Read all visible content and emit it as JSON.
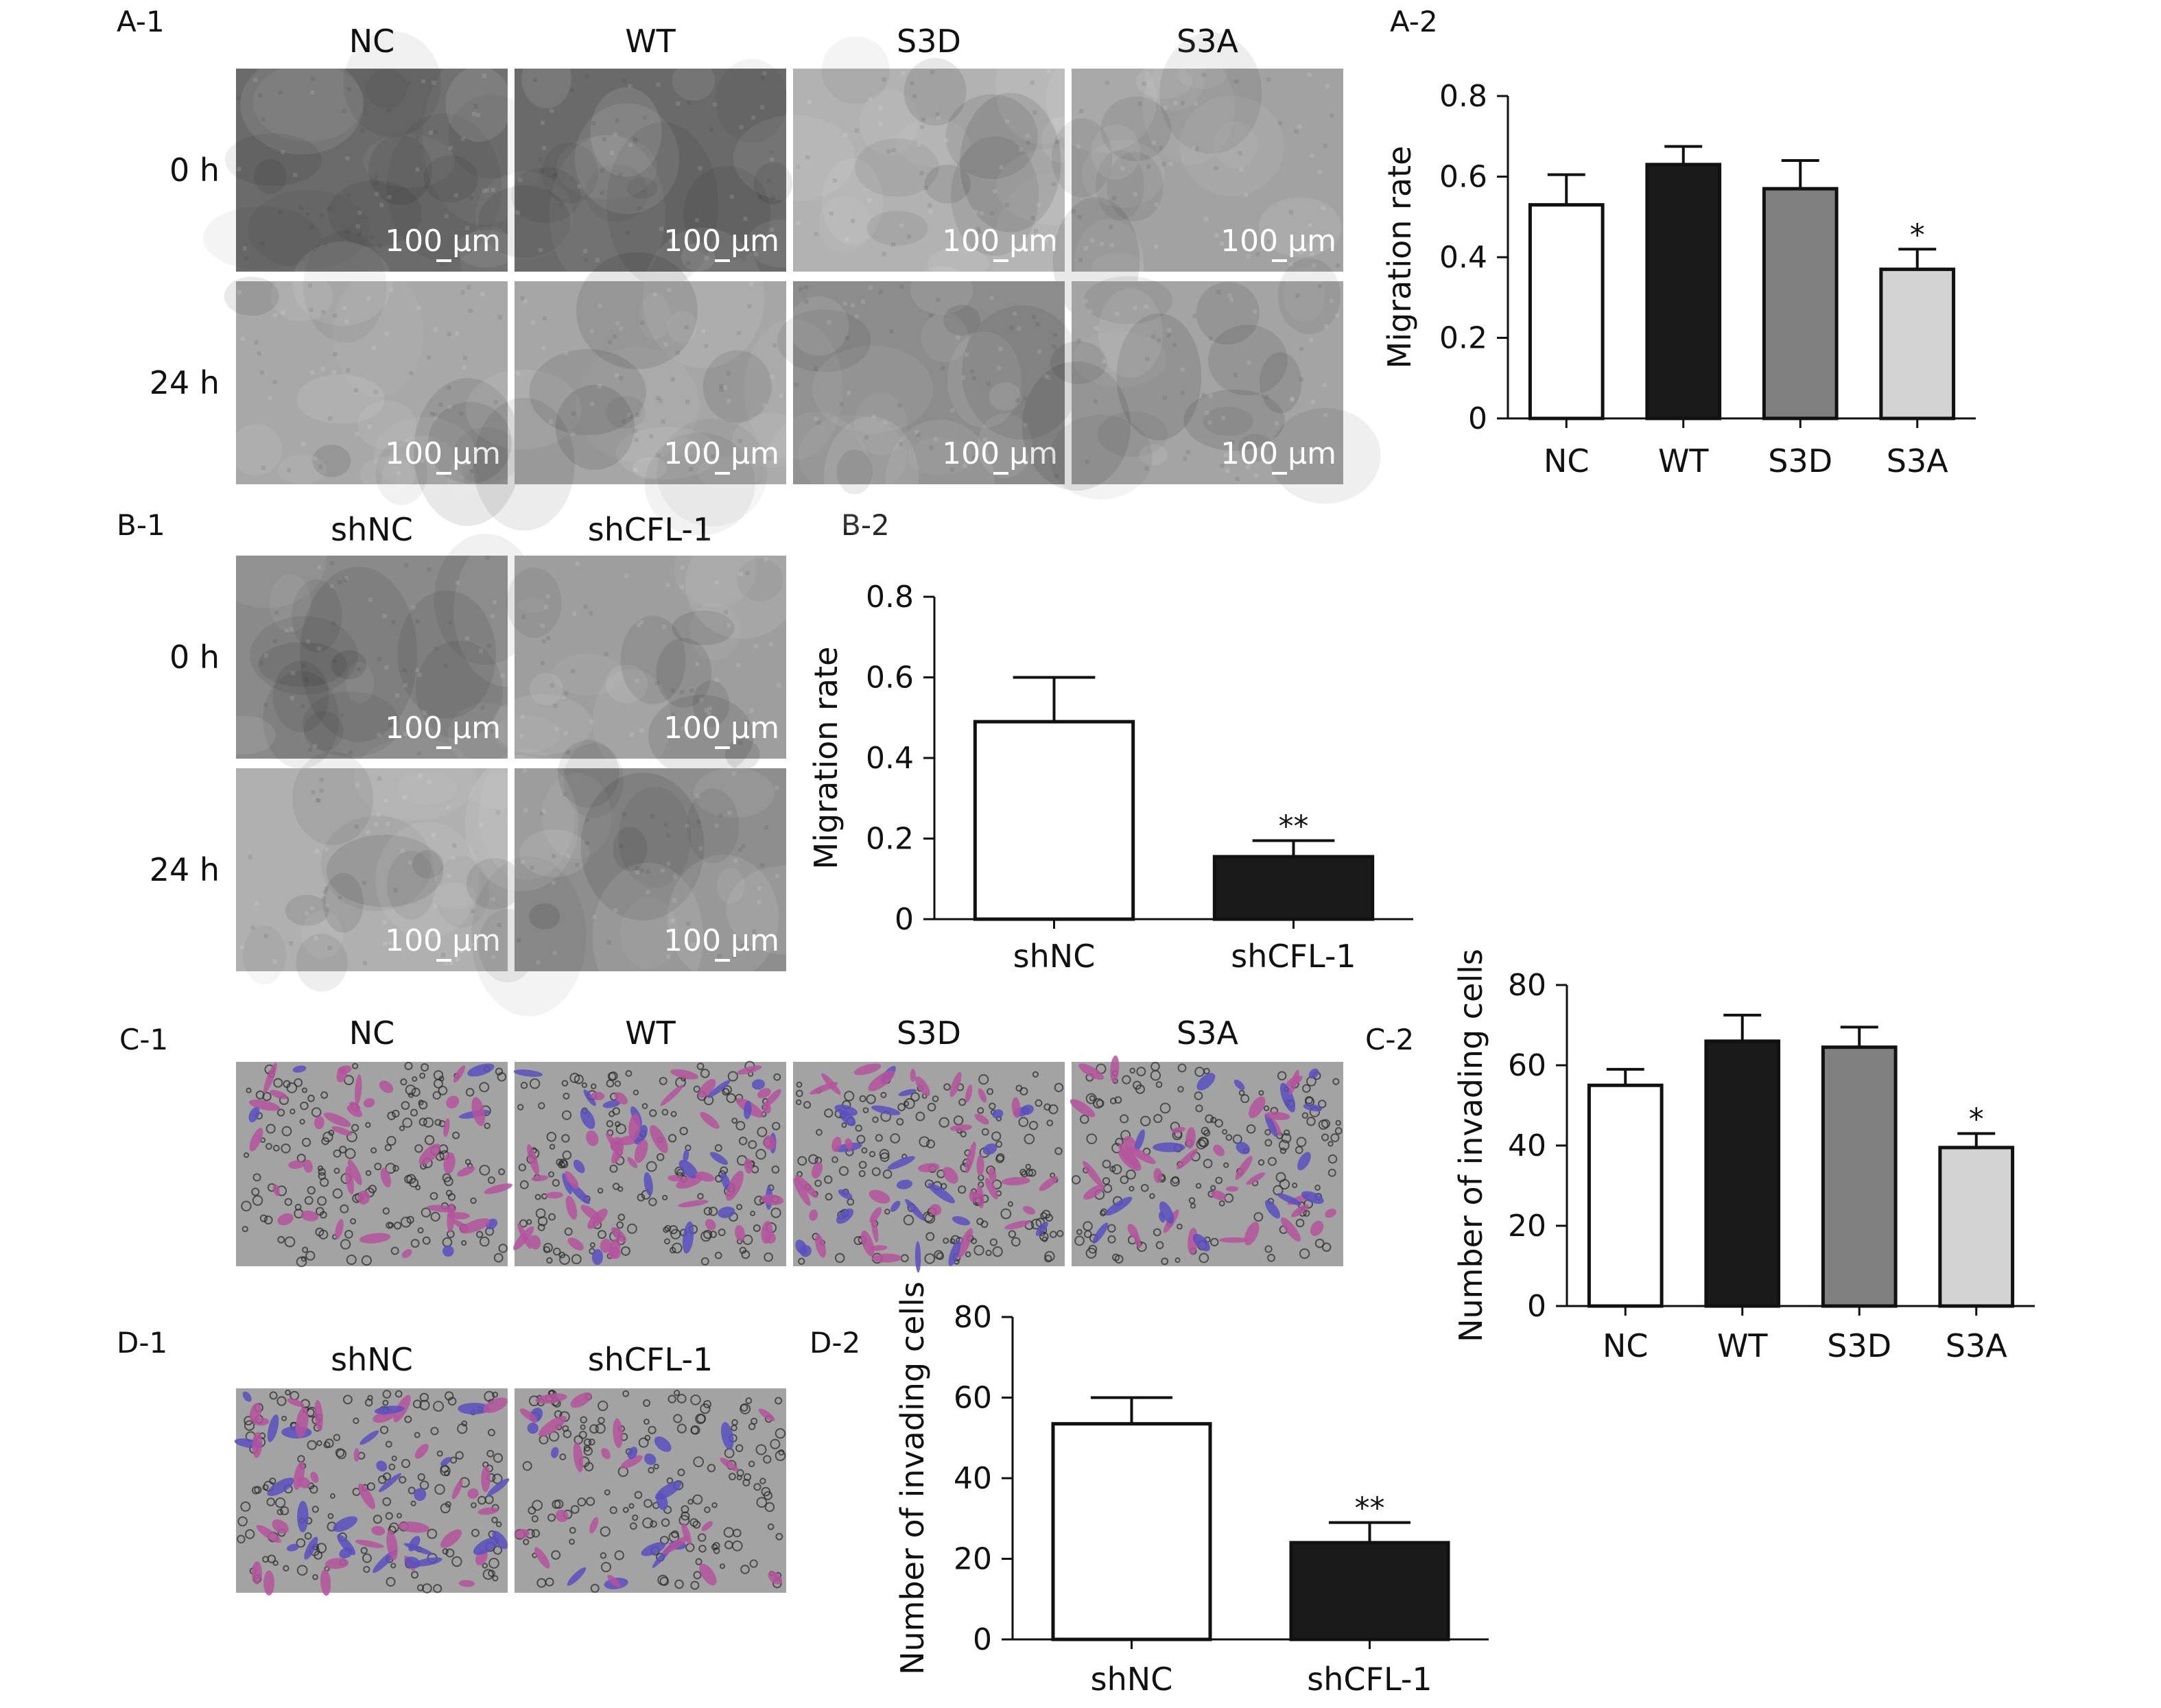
{
  "panels": {
    "A1": {
      "label": "A-1",
      "columns": [
        "NC",
        "WT",
        "S3D",
        "S3A"
      ],
      "rows": [
        "0 h",
        "24 h"
      ],
      "scale_bar": "100 μm",
      "image_tones": [
        [
          "#6b6b6b",
          "#6a6a6a",
          "#b2b2b2",
          "#a2a2a2"
        ],
        [
          "#a8a8a8",
          "#a6a6a6",
          "#8c8c8c",
          "#a4a4a4"
        ]
      ]
    },
    "B1": {
      "label": "B-1",
      "columns": [
        "shNC",
        "shCFL-1"
      ],
      "rows": [
        "0 h",
        "24 h"
      ],
      "scale_bar": "100 μm",
      "image_tones": [
        [
          "#8a8a8a",
          "#9e9e9e"
        ],
        [
          "#b0b0b0",
          "#8e8e8e"
        ]
      ]
    },
    "C1": {
      "label": "C-1",
      "columns": [
        "NC",
        "WT",
        "S3D",
        "S3A"
      ],
      "density": [
        0.35,
        0.7,
        0.6,
        0.45
      ]
    },
    "D1": {
      "label": "D-1",
      "columns": [
        "shNC",
        "shCFL-1"
      ],
      "density": [
        0.55,
        0.2
      ]
    },
    "A2": {
      "label": "A-2"
    },
    "B2": {
      "label": "B-2"
    },
    "C2": {
      "label": "C-2"
    },
    "D2": {
      "label": "D-2"
    }
  },
  "chart_data": [
    {
      "id": "A2",
      "type": "bar",
      "categories": [
        "NC",
        "WT",
        "S3D",
        "S3A"
      ],
      "values": [
        0.53,
        0.63,
        0.57,
        0.37
      ],
      "errors": [
        0.075,
        0.045,
        0.07,
        0.05
      ],
      "significance": [
        "",
        "",
        "",
        "*"
      ],
      "colors": [
        "#ffffff",
        "#1a1a1a",
        "#808080",
        "#d3d3d3"
      ],
      "ylabel": "Migration rate",
      "ylim": [
        0,
        0.8
      ],
      "yticks": [
        "0",
        "0.2",
        "0.4",
        "0.6",
        "0.8"
      ]
    },
    {
      "id": "B2",
      "type": "bar",
      "categories": [
        "shNC",
        "shCFL-1"
      ],
      "values": [
        0.49,
        0.155
      ],
      "errors": [
        0.11,
        0.04
      ],
      "significance": [
        "",
        "**"
      ],
      "colors": [
        "#ffffff",
        "#1a1a1a"
      ],
      "ylabel": "Migration rate",
      "ylim": [
        0,
        0.8
      ],
      "yticks": [
        "0",
        "0.2",
        "0.4",
        "0.6",
        "0.8"
      ]
    },
    {
      "id": "C2",
      "type": "bar",
      "categories": [
        "NC",
        "WT",
        "S3D",
        "S3A"
      ],
      "values": [
        55,
        66,
        64.5,
        39.5
      ],
      "errors": [
        4,
        6.5,
        5,
        3.5
      ],
      "significance": [
        "",
        "",
        "",
        "*"
      ],
      "colors": [
        "#ffffff",
        "#1a1a1a",
        "#808080",
        "#d3d3d3"
      ],
      "ylabel": "Number of invading cells",
      "ylim": [
        0,
        80
      ],
      "yticks": [
        "0",
        "20",
        "40",
        "60",
        "80"
      ]
    },
    {
      "id": "D2",
      "type": "bar",
      "categories": [
        "shNC",
        "shCFL-1"
      ],
      "values": [
        53.5,
        24
      ],
      "errors": [
        6.5,
        5
      ],
      "significance": [
        "",
        "**"
      ],
      "colors": [
        "#ffffff",
        "#1a1a1a"
      ],
      "ylabel": "Number of invading cells",
      "ylim": [
        0,
        80
      ],
      "yticks": [
        "0",
        "20",
        "40",
        "60",
        "80"
      ]
    }
  ]
}
